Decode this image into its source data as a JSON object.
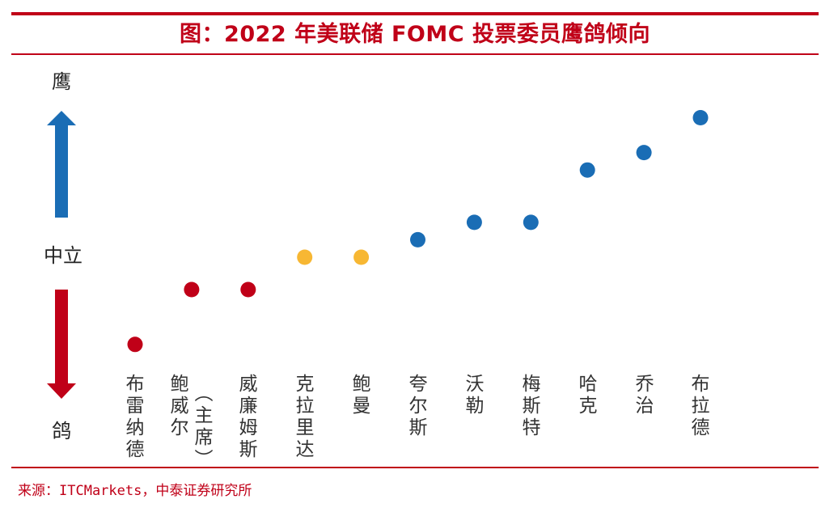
{
  "title": "图：2022 年美联储 FOMC 投票委员鹰鸽倾向",
  "source": "来源：ITCMarkets，中泰证券研究所",
  "axis": {
    "top_label": "鹰",
    "middle_label": "中立",
    "bottom_label": "鸽"
  },
  "colors": {
    "dove": "#c00018",
    "neutral": "#f7b733",
    "hawk": "#1a6db5",
    "rule": "#c00018"
  },
  "chart_data": {
    "type": "scatter",
    "categories": [
      "布雷纳德",
      "鲍威尔（主席）",
      "威廉姆斯",
      "克拉里达",
      "鲍曼",
      "夸尔斯",
      "沃勒",
      "梅斯特",
      "哈克",
      "乔治",
      "布拉德"
    ],
    "category_display": [
      "布雷纳德",
      "鲍威尔",
      "（主席）",
      "威廉姆斯",
      "克拉里达",
      "鲍曼",
      "夸尔斯",
      "沃勒",
      "梅斯特",
      "哈克",
      "乔治",
      "布拉德"
    ],
    "values": [
      -3.5,
      -1.3,
      -1.3,
      0,
      0,
      0.7,
      1.4,
      1.4,
      3.5,
      4.2,
      5.6
    ],
    "stance": [
      "dove",
      "dove",
      "dove",
      "neutral",
      "neutral",
      "hawk",
      "hawk",
      "hawk",
      "hawk",
      "hawk",
      "hawk"
    ],
    "ylim": [
      -4,
      6
    ],
    "reference_line": 0,
    "title": "",
    "xlabel": "",
    "ylabel": ""
  }
}
